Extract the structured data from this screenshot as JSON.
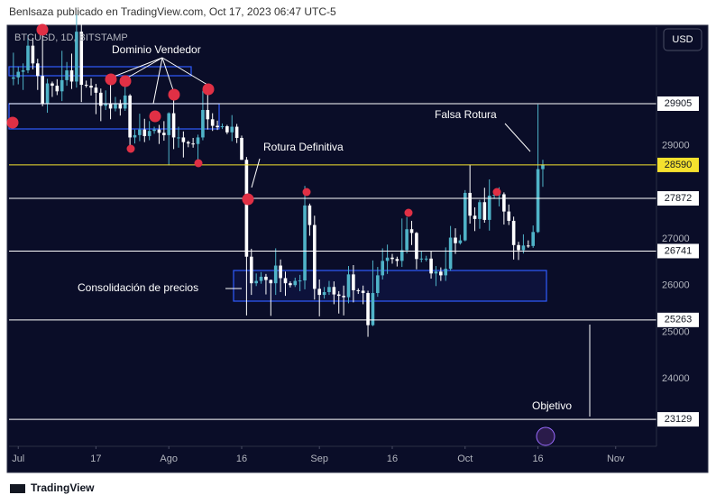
{
  "header": "Benlsaza publicado en TradingView.com, Oct 17, 2023 06:47 UTC-5",
  "footer": "TradingView",
  "chart_data": {
    "type": "candlestick",
    "symbol": "BTCUSD, 1D, BITSTAMP",
    "currency": "USD",
    "up_color": "#4fb3c8",
    "down_color": "#ffffff",
    "grid": false,
    "annotations": [
      "Dominio Vendedor",
      "Falsa Rotura",
      "Rotura Definitiva",
      "Consolidación de precios",
      "Objetivo"
    ],
    "xlim": [
      -1.9,
      131.4
    ],
    "xticks": [
      {
        "value": 0,
        "label": "Jul"
      },
      {
        "value": 16,
        "label": "17"
      },
      {
        "value": 31,
        "label": "Ago"
      },
      {
        "value": 46,
        "label": "16"
      },
      {
        "value": 62,
        "label": "Sep"
      },
      {
        "value": 77,
        "label": "16"
      },
      {
        "value": 92,
        "label": "Oct"
      },
      {
        "value": 107,
        "label": "16"
      },
      {
        "value": 123,
        "label": "Nov"
      }
    ],
    "ylim": [
      22550,
      31550
    ],
    "yticks": [
      24000,
      25000,
      26000,
      27000,
      29000
    ],
    "levels": [
      {
        "value": 29905,
        "color": "#ffffff"
      },
      {
        "value": 28590,
        "color": "#f5e12e"
      },
      {
        "value": 27872,
        "color": "#ffffff"
      },
      {
        "value": 26741,
        "color": "#ffffff"
      },
      {
        "value": 25263,
        "color": "#ffffff"
      },
      {
        "value": 23129,
        "color": "#ffffff"
      }
    ],
    "x": [
      -1,
      0,
      1,
      2,
      3,
      4,
      5,
      6,
      7,
      8,
      9,
      10,
      11,
      12,
      13,
      14,
      15,
      16,
      17,
      18,
      19,
      20,
      21,
      22,
      23,
      24,
      25,
      26,
      27,
      28,
      29,
      30,
      31,
      32,
      33,
      34,
      35,
      36,
      37,
      38,
      39,
      40,
      41,
      42,
      43,
      44,
      45,
      46,
      47,
      48,
      49,
      50,
      51,
      52,
      53,
      54,
      55,
      56,
      57,
      58,
      59,
      60,
      61,
      62,
      63,
      64,
      65,
      66,
      67,
      68,
      69,
      70,
      71,
      72,
      73,
      74,
      75,
      76,
      77,
      78,
      79,
      80,
      81,
      82,
      83,
      84,
      85,
      86,
      87,
      88,
      89,
      90,
      91,
      92,
      93,
      94,
      95,
      96,
      97,
      98,
      99,
      100,
      101,
      102,
      103,
      104,
      105,
      106,
      107,
      108
    ],
    "ohlc": [
      [
        30440,
        31000,
        30300,
        30470
      ],
      [
        30470,
        30700,
        30320,
        30590
      ],
      [
        30590,
        30770,
        30200,
        30620
      ],
      [
        30620,
        31380,
        30560,
        31150
      ],
      [
        31150,
        31320,
        30640,
        30770
      ],
      [
        30770,
        30870,
        30200,
        30500
      ],
      [
        30500,
        31500,
        29850,
        29900
      ],
      [
        29900,
        30440,
        29710,
        30340
      ],
      [
        30340,
        30380,
        30050,
        30290
      ],
      [
        30290,
        30430,
        30090,
        30170
      ],
      [
        30170,
        31040,
        29960,
        30410
      ],
      [
        30410,
        30800,
        30290,
        30620
      ],
      [
        30620,
        30980,
        30220,
        30380
      ],
      [
        30380,
        31820,
        30250,
        31450
      ],
      [
        31450,
        31630,
        29940,
        30310
      ],
      [
        30310,
        30400,
        30250,
        30290
      ],
      [
        30290,
        30450,
        30080,
        30250
      ],
      [
        30250,
        30330,
        29680,
        30140
      ],
      [
        30140,
        30230,
        29530,
        29860
      ],
      [
        29860,
        30190,
        29770,
        29910
      ],
      [
        29910,
        30420,
        29570,
        29800
      ],
      [
        29800,
        30050,
        29740,
        29910
      ],
      [
        29910,
        29990,
        29650,
        29800
      ],
      [
        29800,
        30350,
        29750,
        30080
      ],
      [
        30080,
        30110,
        28920,
        29180
      ],
      [
        29180,
        29350,
        29050,
        29230
      ],
      [
        29230,
        29690,
        29100,
        29350
      ],
      [
        29350,
        29580,
        29080,
        29210
      ],
      [
        29210,
        29530,
        29120,
        29320
      ],
      [
        29320,
        29410,
        29260,
        29350
      ],
      [
        29350,
        29450,
        29040,
        29280
      ],
      [
        29280,
        29530,
        29110,
        29230
      ],
      [
        29230,
        29720,
        28580,
        29700
      ],
      [
        29700,
        30050,
        28930,
        29180
      ],
      [
        29180,
        29410,
        28960,
        29180
      ],
      [
        29180,
        29310,
        28750,
        29080
      ],
      [
        29080,
        29110,
        28970,
        29050
      ],
      [
        29050,
        29170,
        28960,
        29040
      ],
      [
        29040,
        29240,
        28700,
        29180
      ],
      [
        29180,
        30180,
        29120,
        29770
      ],
      [
        29770,
        30120,
        29350,
        29570
      ],
      [
        29570,
        29700,
        29320,
        29430
      ],
      [
        29430,
        29540,
        29340,
        29400
      ],
      [
        29400,
        29480,
        29360,
        29420
      ],
      [
        29420,
        29450,
        29250,
        29290
      ],
      [
        29290,
        29660,
        29100,
        29410
      ],
      [
        29410,
        29470,
        29060,
        29170
      ],
      [
        29170,
        29220,
        28700,
        28700
      ],
      [
        28700,
        28760,
        25360,
        26620
      ],
      [
        26620,
        26790,
        25800,
        26050
      ],
      [
        26050,
        26260,
        25990,
        26100
      ],
      [
        26100,
        26290,
        26040,
        26190
      ],
      [
        26190,
        26250,
        25810,
        26120
      ],
      [
        26120,
        26130,
        25350,
        26050
      ],
      [
        26050,
        26800,
        25800,
        26430
      ],
      [
        26430,
        26560,
        25860,
        26160
      ],
      [
        26160,
        26300,
        25780,
        26050
      ],
      [
        26050,
        26090,
        25960,
        26010
      ],
      [
        26010,
        26170,
        25970,
        26100
      ],
      [
        26100,
        26230,
        25880,
        26110
      ],
      [
        26110,
        28140,
        25920,
        27720
      ],
      [
        27720,
        27760,
        27070,
        27300
      ],
      [
        27300,
        27500,
        25700,
        25930
      ],
      [
        25930,
        26130,
        25340,
        25800
      ],
      [
        25800,
        25970,
        25720,
        25860
      ],
      [
        25860,
        26100,
        25800,
        25970
      ],
      [
        25970,
        26090,
        25600,
        25810
      ],
      [
        25810,
        25880,
        25400,
        25780
      ],
      [
        25780,
        26000,
        25360,
        25750
      ],
      [
        25750,
        26420,
        25620,
        26240
      ],
      [
        26240,
        26440,
        25640,
        25900
      ],
      [
        25900,
        25940,
        25820,
        25890
      ],
      [
        25890,
        26000,
        25600,
        25840
      ],
      [
        25840,
        25890,
        24900,
        25150
      ],
      [
        25150,
        26540,
        25130,
        25840
      ],
      [
        25840,
        26400,
        25760,
        26220
      ],
      [
        26220,
        26800,
        26130,
        26530
      ],
      [
        26530,
        26880,
        26250,
        26600
      ],
      [
        26600,
        26680,
        26470,
        26570
      ],
      [
        26570,
        26620,
        26410,
        26530
      ],
      [
        26530,
        27440,
        26400,
        26760
      ],
      [
        26760,
        27470,
        26690,
        27210
      ],
      [
        27210,
        27390,
        26870,
        27130
      ],
      [
        27130,
        27150,
        26350,
        26570
      ],
      [
        26570,
        26740,
        26500,
        26580
      ],
      [
        26580,
        26640,
        26520,
        26580
      ],
      [
        26580,
        26740,
        26150,
        26260
      ],
      [
        26260,
        26420,
        25990,
        26300
      ],
      [
        26300,
        26390,
        26100,
        26220
      ],
      [
        26220,
        26820,
        26100,
        26360
      ],
      [
        26360,
        27280,
        26320,
        27030
      ],
      [
        27030,
        27230,
        26680,
        26910
      ],
      [
        26910,
        27090,
        26880,
        26970
      ],
      [
        26970,
        28050,
        26950,
        27990
      ],
      [
        27990,
        28600,
        27330,
        27500
      ],
      [
        27500,
        27680,
        27170,
        27430
      ],
      [
        27430,
        27840,
        27220,
        27790
      ],
      [
        27790,
        28100,
        27350,
        27410
      ],
      [
        27410,
        28280,
        27180,
        27930
      ],
      [
        27930,
        28000,
        27860,
        27950
      ],
      [
        27950,
        28110,
        27700,
        27960
      ],
      [
        27960,
        28000,
        27310,
        27590
      ],
      [
        27590,
        27740,
        27300,
        27390
      ],
      [
        27390,
        27480,
        26560,
        26870
      ],
      [
        26870,
        26940,
        26550,
        26760
      ],
      [
        26760,
        27100,
        26690,
        26860
      ],
      [
        26860,
        26970,
        26810,
        26850
      ],
      [
        26850,
        27290,
        26810,
        27150
      ],
      [
        27150,
        29890,
        27130,
        28500
      ],
      [
        28500,
        28700,
        28120,
        28600
      ]
    ]
  }
}
